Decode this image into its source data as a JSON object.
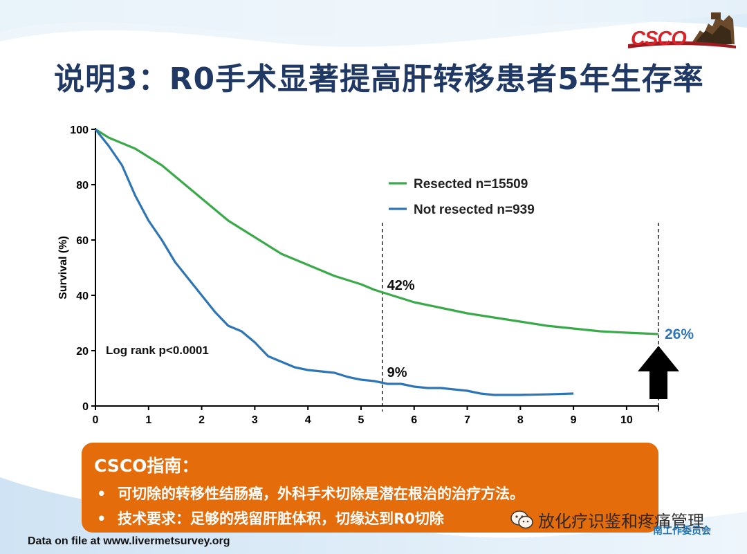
{
  "slide": {
    "title": "说明3：R0手术显著提高肝转移患者5年生存率",
    "logo_text": "CSCO",
    "footnote": "Data on file at www.livermetsurvey.org",
    "watermark": "放化疗识鉴和疼痛管理",
    "watermark_sub": "南工作委员会"
  },
  "guideline_box": {
    "title": "CSCO指南：",
    "bullet": "•",
    "items": [
      "可切除的转移性结肠癌，外科手术切除是潜在根治的治疗方法。",
      "技术要求：足够的残留肝脏体积，切缘达到R0切除"
    ]
  },
  "colors": {
    "title": "#1f3864",
    "resected": "#3aa94a",
    "not_resected": "#2e75b6",
    "box": "#e46c0a",
    "logo": "#d8232a"
  },
  "chart_data": {
    "type": "line",
    "ylabel": "Survival (%)",
    "xlabel": "",
    "xlim": [
      0,
      10.6
    ],
    "ylim": [
      0,
      100
    ],
    "x_ticks": [
      0,
      1,
      2,
      3,
      4,
      5,
      6,
      7,
      8,
      9,
      10
    ],
    "y_ticks": [
      0,
      20,
      40,
      60,
      80,
      100
    ],
    "grid": false,
    "legend_position": "top-right",
    "series": [
      {
        "name": "Resected n=15509",
        "color": "#3aa94a",
        "x": [
          0,
          0.25,
          0.5,
          0.75,
          1,
          1.25,
          1.5,
          1.75,
          2,
          2.25,
          2.5,
          2.75,
          3,
          3.25,
          3.5,
          3.75,
          4,
          4.25,
          4.5,
          4.75,
          5,
          5.25,
          5.5,
          5.75,
          6,
          6.5,
          7,
          7.5,
          8,
          8.5,
          9,
          9.5,
          10,
          10.6
        ],
        "y": [
          100,
          97,
          95,
          93,
          90,
          87,
          83,
          79,
          75,
          71,
          67,
          64,
          61,
          58,
          55,
          53,
          51,
          49,
          47,
          45.5,
          44,
          42,
          40.5,
          39,
          37.5,
          35.5,
          33.5,
          32,
          30.5,
          29,
          28,
          27,
          26.5,
          26
        ]
      },
      {
        "name": "Not resected n=939",
        "color": "#2e75b6",
        "x": [
          0,
          0.25,
          0.5,
          0.75,
          1,
          1.25,
          1.5,
          1.75,
          2,
          2.25,
          2.5,
          2.75,
          3,
          3.25,
          3.5,
          3.75,
          4,
          4.25,
          4.5,
          4.75,
          5,
          5.25,
          5.5,
          5.75,
          6,
          6.25,
          6.5,
          6.75,
          7,
          7.25,
          7.5,
          8,
          8.5,
          9
        ],
        "y": [
          100,
          94,
          87,
          76,
          67,
          60,
          52,
          46,
          40,
          34,
          29,
          27,
          23,
          18,
          16,
          14,
          13,
          12.5,
          12,
          10.5,
          9.5,
          9,
          8,
          8,
          7,
          6.5,
          6.5,
          6,
          5.5,
          4.5,
          4,
          4,
          4.2,
          4.5
        ]
      }
    ],
    "annotations": {
      "p_value": "Log rank p<0.0001",
      "resected_5yr": "42%",
      "not_resected_5yr": "9%",
      "resected_10yr": "26%"
    },
    "reference_lines_x": [
      5.4,
      10.6
    ]
  }
}
